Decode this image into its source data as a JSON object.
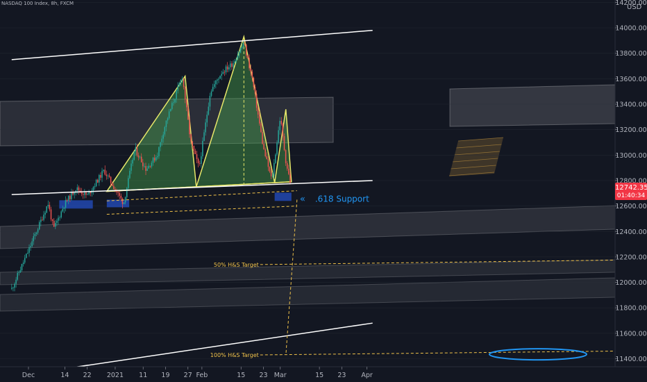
{
  "symbol": "NASDAQ 100 Index, 8h, FXCM",
  "currency": "USD",
  "last_price": {
    "value": "12742.35",
    "countdown": "01:40:34",
    "color": "#f23645"
  },
  "annotations": {
    "support_label": ".618 Support",
    "support_arrow": "«",
    "target_50": "50% H&S Target",
    "target_100": "100% H&S Target"
  },
  "colors": {
    "background": "#131722",
    "up": "#26a69a",
    "down": "#ef5350",
    "pattern_fill": "#4caf50",
    "pattern_line": "#e8e86a",
    "channel": "#ffffff",
    "support_label": "#2196f3",
    "target_line": "#f0c24a"
  },
  "chart_data": {
    "type": "candlestick",
    "title": "",
    "ylim": [
      11220,
      14250
    ],
    "y_ticks": [
      11400,
      11600,
      11800,
      12000,
      12200,
      12400,
      12600,
      12800,
      13000,
      13200,
      13400,
      13600,
      13800,
      14000,
      14200
    ],
    "y_tick_labels": [
      "11400.00",
      "11600.00",
      "11800.00",
      "12000.00",
      "12200.00",
      "12400.00",
      "12600.00",
      "12800.00",
      "13000.00",
      "13200.00",
      "13400.00",
      "13600.00",
      "13800.00",
      "14000.00",
      "14200.00"
    ],
    "x_ticks": [
      {
        "date": "2020-12-01",
        "label": "Dec"
      },
      {
        "date": "2020-12-14",
        "label": "14"
      },
      {
        "date": "2020-12-22",
        "label": "22"
      },
      {
        "date": "2021-01-01",
        "label": "2021"
      },
      {
        "date": "2021-01-11",
        "label": "11"
      },
      {
        "date": "2021-01-19",
        "label": "19"
      },
      {
        "date": "2021-01-27",
        "label": "27"
      },
      {
        "date": "2021-02-01",
        "label": "Feb"
      },
      {
        "date": "2021-02-15",
        "label": "15"
      },
      {
        "date": "2021-02-23",
        "label": "23"
      },
      {
        "date": "2021-03-01",
        "label": "Mar"
      },
      {
        "date": "2021-03-15",
        "label": "15"
      },
      {
        "date": "2021-03-23",
        "label": "23"
      },
      {
        "date": "2021-04-01",
        "label": "Apr"
      }
    ],
    "price_path": [
      [
        "2020-11-25",
        11950
      ],
      [
        "2020-12-01",
        12250
      ],
      [
        "2020-12-08",
        12620
      ],
      [
        "2020-12-10",
        12420
      ],
      [
        "2020-12-14",
        12620
      ],
      [
        "2020-12-18",
        12740
      ],
      [
        "2020-12-22",
        12680
      ],
      [
        "2020-12-28",
        12880
      ],
      [
        "2021-01-04",
        12620
      ],
      [
        "2021-01-08",
        13050
      ],
      [
        "2021-01-12",
        12890
      ],
      [
        "2021-01-16",
        13000
      ],
      [
        "2021-01-19",
        13250
      ],
      [
        "2021-01-25",
        13620
      ],
      [
        "2021-01-28",
        13100
      ],
      [
        "2021-01-31",
        12900
      ],
      [
        "2021-02-04",
        13500
      ],
      [
        "2021-02-08",
        13650
      ],
      [
        "2021-02-12",
        13720
      ],
      [
        "2021-02-16",
        13880
      ],
      [
        "2021-02-19",
        13600
      ],
      [
        "2021-02-23",
        13050
      ],
      [
        "2021-02-26",
        12800
      ],
      [
        "2021-03-01",
        13300
      ],
      [
        "2021-03-03",
        12950
      ],
      [
        "2021-03-05",
        12742
      ]
    ],
    "head_and_shoulders": {
      "left_shoulder": [
        "2021-01-26",
        13620
      ],
      "head": [
        "2021-02-16",
        13930
      ],
      "right_shoulder": [
        "2021-03-03",
        13360
      ],
      "neckline": [
        [
          "2020-12-29",
          12715
        ],
        [
          "2021-03-05",
          12790
        ]
      ]
    },
    "channel_lines": [
      [
        [
          "2020-11-25",
          13750
        ],
        [
          "2021-04-03",
          13980
        ]
      ],
      [
        [
          "2020-11-25",
          12690
        ],
        [
          "2021-04-03",
          12800
        ]
      ],
      [
        [
          "2020-11-25",
          11260
        ],
        [
          "2021-04-03",
          11680
        ]
      ]
    ],
    "support_zones": [
      {
        "from": "2020-12-12",
        "to": "2020-12-24",
        "low": 12580,
        "high": 12645
      },
      {
        "from": "2020-12-29",
        "to": "2021-01-06",
        "low": 12590,
        "high": 12650
      },
      {
        "from": "2021-02-27",
        "to": "2021-03-05",
        "low": 12640,
        "high": 12705
      }
    ],
    "last_close": 12742.35,
    "targets": [
      {
        "label": "50% H&S Target",
        "price": 12140
      },
      {
        "label": "100% H&S Target",
        "price": 11430
      }
    ]
  }
}
